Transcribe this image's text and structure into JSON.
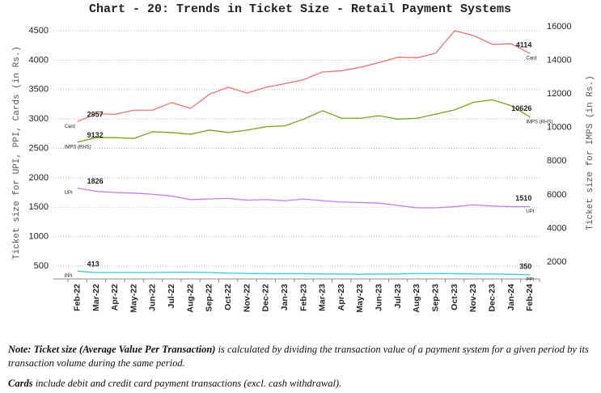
{
  "chart_data": {
    "type": "line",
    "title": "Chart - 20: Trends in Ticket Size - Retail Payment Systems",
    "y_label": "Ticket size for UPI, PPI, Cards (in Rs.)",
    "y2_label": "Ticket size for IMPS (in Rs.)",
    "categories": [
      "Feb-22",
      "Mar-22",
      "Apr-22",
      "May-22",
      "Jun-22",
      "Jul-22",
      "Aug-22",
      "Sep-22",
      "Oct-22",
      "Nov-22",
      "Dec-22",
      "Jan-23",
      "Feb-23",
      "Mar-23",
      "Apr-23",
      "May-23",
      "Jun-23",
      "Jul-23",
      "Aug-23",
      "Sep-23",
      "Oct-23",
      "Nov-23",
      "Dec-23",
      "Jan-24",
      "Feb-24"
    ],
    "ylim": [
      280,
      4570
    ],
    "yticks": [
      500,
      1000,
      1500,
      2000,
      2500,
      3000,
      3500,
      4000,
      4500
    ],
    "y2lim": [
      990,
      16000
    ],
    "y2ticks": [
      2000,
      4000,
      6000,
      8000,
      10000,
      12000,
      14000,
      16000
    ],
    "grid": true,
    "series": [
      {
        "name": "Card",
        "color": "#f07272",
        "values": [
          2957,
          3090,
          3080,
          3150,
          3150,
          3280,
          3180,
          3420,
          3540,
          3440,
          3540,
          3600,
          3670,
          3800,
          3820,
          3880,
          3960,
          4050,
          4040,
          4120,
          4500,
          4420,
          4270,
          4280,
          4114
        ]
      },
      {
        "name": "IMPS (RHS)",
        "color": "#7aa316",
        "axis": "y2",
        "values": [
          9132,
          9400,
          9400,
          9350,
          9750,
          9700,
          9600,
          9850,
          9700,
          9850,
          10050,
          10100,
          10500,
          11000,
          10550,
          10550,
          10700,
          10500,
          10550,
          10800,
          11050,
          11500,
          11650,
          11300,
          10626
        ]
      },
      {
        "name": "UPI",
        "color": "#c77ef0",
        "values": [
          1826,
          1770,
          1750,
          1740,
          1720,
          1690,
          1630,
          1640,
          1650,
          1620,
          1630,
          1610,
          1640,
          1610,
          1590,
          1580,
          1570,
          1530,
          1490,
          1490,
          1510,
          1540,
          1520,
          1510,
          1510
        ]
      },
      {
        "name": "PPI",
        "color": "#3cc8d8",
        "values": [
          413,
          390,
          390,
          390,
          390,
          395,
          395,
          390,
          380,
          375,
          370,
          370,
          370,
          365,
          365,
          360,
          365,
          365,
          375,
          375,
          370,
          365,
          365,
          360,
          350
        ]
      }
    ]
  },
  "notes": [
    {
      "bold": "Note: Ticket size (Average Value Per Transaction)",
      "rest": " is calculated by dividing the transaction value of a payment system for a given period by its transaction volume during the same period."
    },
    {
      "bold": "Cards",
      "rest": " include debit and credit card payment transactions (excl. cash withdrawal)."
    }
  ]
}
